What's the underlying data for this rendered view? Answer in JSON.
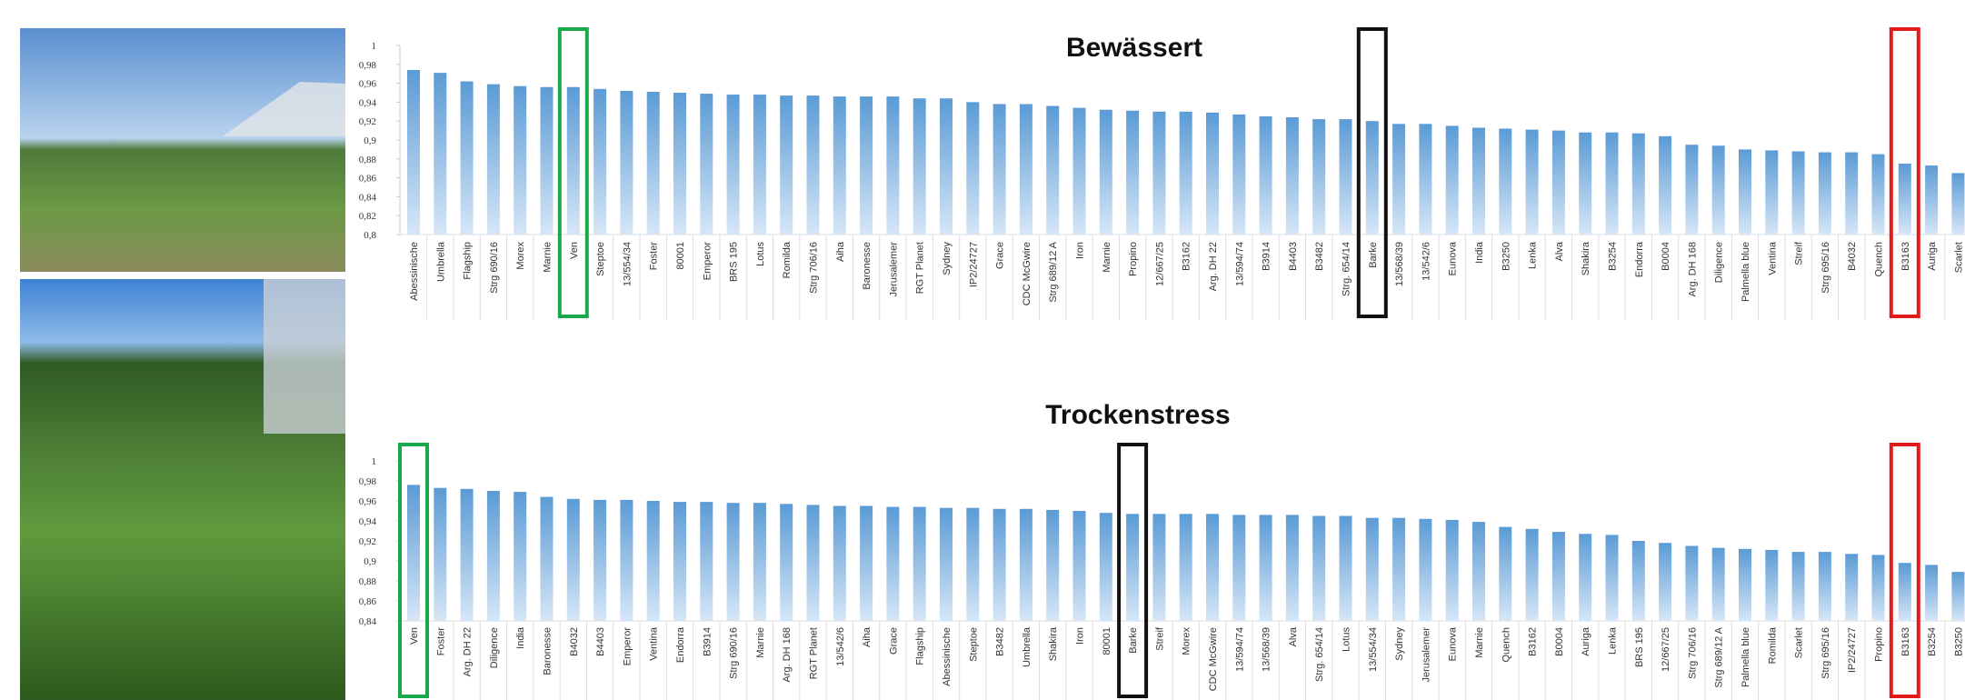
{
  "chart_data": [
    {
      "type": "bar",
      "title": "Bewässert",
      "color": "#5b9bd5",
      "categories": [
        "Abessinische",
        "Umbrella",
        "Flagship",
        "Strg 690/16",
        "Morex",
        "Marnie",
        "Ven",
        "Steptoe",
        "13/554/34",
        "Foster",
        "80001",
        "Emperor",
        "BRS 195",
        "Lotus",
        "Romilda",
        "Strg 706/16",
        "Aiha",
        "Baronesse",
        "Jerusalemer",
        "RGT Planet",
        "Sydney",
        "IP2/24727",
        "Grace",
        "CDC McGwire",
        "Strg 689/12 A",
        "Iron",
        "Marnie",
        "Propino",
        "12/667/25",
        "B3162",
        "Arg. DH 22",
        "13/594/74",
        "B3914",
        "B4403",
        "B3482",
        "Strg. 654/14",
        "Barke",
        "13/568/39",
        "13/542/6",
        "Eunova",
        "India",
        "B3250",
        "Lenka",
        "Alva",
        "Shakira",
        "B3254",
        "Endorra",
        "B0004",
        "Arg. DH 168",
        "Diligence",
        "Palmella blue",
        "Ventina",
        "Streif",
        "Strg 695/16",
        "B4032",
        "Quench",
        "B3163",
        "Auriga",
        "Scarlet"
      ],
      "values": [
        0.974,
        0.971,
        0.962,
        0.959,
        0.957,
        0.956,
        0.956,
        0.954,
        0.952,
        0.951,
        0.95,
        0.949,
        0.948,
        0.948,
        0.947,
        0.947,
        0.946,
        0.946,
        0.946,
        0.944,
        0.944,
        0.94,
        0.938,
        0.938,
        0.936,
        0.934,
        0.932,
        0.931,
        0.93,
        0.93,
        0.929,
        0.927,
        0.925,
        0.924,
        0.922,
        0.922,
        0.92,
        0.917,
        0.917,
        0.915,
        0.913,
        0.912,
        0.911,
        0.91,
        0.908,
        0.908,
        0.907,
        0.904,
        0.895,
        0.894,
        0.89,
        0.889,
        0.888,
        0.887,
        0.887,
        0.885,
        0.875,
        0.873,
        0.865
      ],
      "ylim": [
        0.8,
        1
      ],
      "yticks": [
        {
          "value": 0.8,
          "label": "0,8"
        },
        {
          "value": 0.82,
          "label": "0,82"
        },
        {
          "value": 0.84,
          "label": "0,84"
        },
        {
          "value": 0.86,
          "label": "0,86"
        },
        {
          "value": 0.88,
          "label": "0,88"
        },
        {
          "value": 0.9,
          "label": "0,9"
        },
        {
          "value": 0.92,
          "label": "0,92"
        },
        {
          "value": 0.94,
          "label": "0,94"
        },
        {
          "value": 0.96,
          "label": "0,96"
        },
        {
          "value": 0.98,
          "label": "0,98"
        },
        1
      ]
    },
    {
      "type": "bar",
      "title": "Trockenstress",
      "color": "#5b9bd5",
      "categories": [
        "Ven",
        "Foster",
        "Arg. DH 22",
        "Diligence",
        "India",
        "Baronesse",
        "B4032",
        "B4403",
        "Emperor",
        "Ventina",
        "Endorra",
        "B3914",
        "Strg 690/16",
        "Marnie",
        "Arg. DH 168",
        "RGT Planet",
        "13/542/6",
        "Aiha",
        "Grace",
        "Flagship",
        "Abessinische",
        "Steptoe",
        "B3482",
        "Umbrella",
        "Shakira",
        "Iron",
        "80001",
        "Barke",
        "Streif",
        "Morex",
        "CDC McGwire",
        "13/594/74",
        "13/568/39",
        "Alva",
        "Strg. 654/14",
        "Lotus",
        "13/554/34",
        "Sydney",
        "Jerusalemer",
        "Eunova",
        "Marnie",
        "Quench",
        "B3162",
        "B0004",
        "Auriga",
        "Lenka",
        "BRS 195",
        "12/667/25",
        "Strg 706/16",
        "Strg 689/12 A",
        "Palmella blue",
        "Romilda",
        "Scarlet",
        "Strg 695/16",
        "IP2/24727",
        "Propino",
        "B3163",
        "B3254",
        "B3250"
      ],
      "values": [
        0.976,
        0.973,
        0.972,
        0.97,
        0.969,
        0.964,
        0.962,
        0.961,
        0.961,
        0.96,
        0.959,
        0.959,
        0.958,
        0.958,
        0.957,
        0.956,
        0.955,
        0.955,
        0.954,
        0.954,
        0.953,
        0.953,
        0.952,
        0.952,
        0.951,
        0.95,
        0.948,
        0.947,
        0.947,
        0.947,
        0.947,
        0.946,
        0.946,
        0.946,
        0.945,
        0.945,
        0.943,
        0.943,
        0.942,
        0.941,
        0.939,
        0.934,
        0.932,
        0.929,
        0.927,
        0.926,
        0.92,
        0.918,
        0.915,
        0.913,
        0.912,
        0.911,
        0.909,
        0.909,
        0.907,
        0.906,
        0.898,
        0.896,
        0.889
      ],
      "ylim": [
        0.84,
        1
      ],
      "yticks": [
        {
          "value": 0.84,
          "label": "0,84"
        },
        {
          "value": 0.86,
          "label": "0,86"
        },
        {
          "value": 0.88,
          "label": "0,88"
        },
        {
          "value": 0.9,
          "label": "0,9"
        },
        {
          "value": 0.92,
          "label": "0,92"
        },
        {
          "value": 0.94,
          "label": "0,94"
        },
        {
          "value": 0.96,
          "label": "0,96"
        },
        {
          "value": 0.98,
          "label": "0,98"
        },
        1
      ]
    }
  ]
}
